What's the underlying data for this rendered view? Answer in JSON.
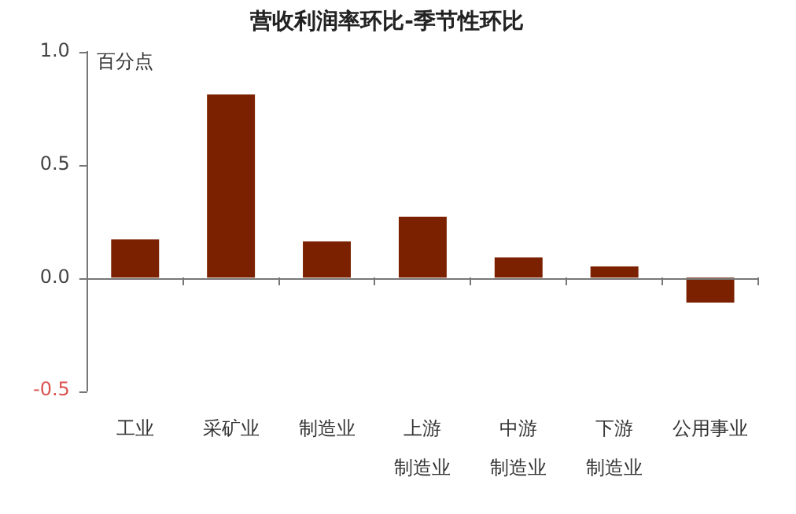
{
  "chart_data": {
    "type": "bar",
    "title": "营收利润率环比-季节性环比",
    "ylabel": "百分点",
    "categories": [
      "工业",
      "采矿业",
      "制造业",
      "上游制造业",
      "中游制造业",
      "下游制造业",
      "公用事业"
    ],
    "values": [
      0.17,
      0.81,
      0.16,
      0.27,
      0.09,
      0.05,
      -0.11
    ],
    "color": "#7b2100",
    "ylim": [
      -0.5,
      1.0
    ],
    "yticks": [
      {
        "value": -0.5,
        "label": "-0.5"
      },
      {
        "value": 0,
        "label": "0.0"
      },
      {
        "value": 0.5,
        "label": "0.5"
      },
      {
        "value": 1,
        "label": "1.0"
      }
    ],
    "grid": false,
    "ref_lines": [
      {
        "axis": "y",
        "value": 0,
        "color": "#777777"
      }
    ],
    "legend": false
  }
}
